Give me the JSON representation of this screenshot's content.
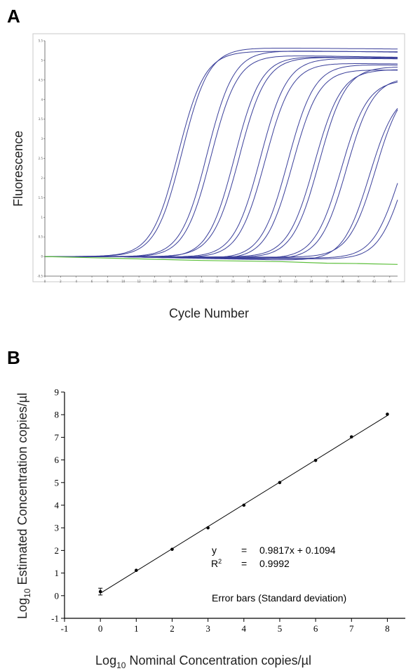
{
  "panels": {
    "a_label": "A",
    "b_label": "B"
  },
  "chart_data": [
    {
      "type": "line",
      "panel": "A",
      "xlabel": "Cycle Number",
      "ylabel": "Fluorescence",
      "xlim": [
        0,
        45
      ],
      "ylim": [
        -0.5,
        5.5
      ],
      "x_ticks": [
        "0",
        "2",
        "4",
        "6",
        "8",
        "10",
        "12",
        "14",
        "16",
        "18",
        "20",
        "22",
        "24",
        "26",
        "28",
        "30",
        "32",
        "34",
        "36",
        "38",
        "40",
        "42",
        "44"
      ],
      "y_ticks": [
        "-0.5",
        "0",
        "0.5",
        "1",
        "1.5",
        "2",
        "2.5",
        "3",
        "3.5",
        "4",
        "4.5",
        "5",
        "5.5"
      ],
      "grid": false,
      "series_color": "#3a3f9a",
      "negative_color": "#5cbf3a",
      "amplification_curves": [
        {
          "ct": 12.8,
          "plateau": 5.25
        },
        {
          "ct": 13.3,
          "plateau": 5.35
        },
        {
          "ct": 16.5,
          "plateau": 5.3
        },
        {
          "ct": 17.0,
          "plateau": 5.2
        },
        {
          "ct": 20.0,
          "plateau": 5.2
        },
        {
          "ct": 20.6,
          "plateau": 5.1
        },
        {
          "ct": 23.3,
          "plateau": 5.1
        },
        {
          "ct": 23.9,
          "plateau": 5.0
        },
        {
          "ct": 26.8,
          "plateau": 5.0
        },
        {
          "ct": 27.4,
          "plateau": 4.9
        },
        {
          "ct": 30.2,
          "plateau": 4.8
        },
        {
          "ct": 30.8,
          "plateau": 4.9
        },
        {
          "ct": 33.6,
          "plateau": 4.6
        },
        {
          "ct": 34.3,
          "plateau": 4.7
        },
        {
          "ct": 37.2,
          "plateau": 4.4
        },
        {
          "ct": 38.0,
          "plateau": 4.5
        },
        {
          "ct": 41.0,
          "plateau": 4.1
        },
        {
          "ct": 41.8,
          "plateau": 4.3
        }
      ],
      "negative_control": [
        [
          0,
          0
        ],
        [
          10,
          -0.05
        ],
        [
          20,
          -0.1
        ],
        [
          30,
          -0.13
        ],
        [
          36,
          -0.17
        ],
        [
          40,
          -0.18
        ],
        [
          45,
          -0.2
        ]
      ]
    },
    {
      "type": "scatter",
      "panel": "B",
      "xlabel": "Log10 Nominal Concentration copies/µl",
      "xlabel_main": "Log",
      "xlabel_sub": "10",
      "xlabel_rest": " Nominal Concentration copies/µl",
      "ylabel": "Log10 Estimated Concentration copies/µl",
      "ylabel_main": "Log",
      "ylabel_sub": "10",
      "ylabel_rest": " Estimated Concentration copies/µl",
      "xlim": [
        -1,
        8.5
      ],
      "ylim": [
        -1,
        9
      ],
      "x_ticks": [
        "-1",
        "0",
        "1",
        "2",
        "3",
        "4",
        "5",
        "6",
        "7",
        "8"
      ],
      "y_ticks": [
        "-1",
        "0",
        "1",
        "2",
        "3",
        "4",
        "5",
        "6",
        "7",
        "8",
        "9"
      ],
      "points": [
        {
          "x": 0,
          "y": 0.18,
          "sd": 0.15
        },
        {
          "x": 1,
          "y": 1.12,
          "sd": 0
        },
        {
          "x": 2,
          "y": 2.05,
          "sd": 0
        },
        {
          "x": 3,
          "y": 3.0,
          "sd": 0
        },
        {
          "x": 4,
          "y": 4.0,
          "sd": 0
        },
        {
          "x": 5,
          "y": 5.0,
          "sd": 0
        },
        {
          "x": 6,
          "y": 5.98,
          "sd": 0
        },
        {
          "x": 7,
          "y": 7.02,
          "sd": 0
        },
        {
          "x": 8,
          "y": 8.02,
          "sd": 0
        }
      ],
      "fit": {
        "slope": 0.9817,
        "intercept": 0.1094
      },
      "annotations": {
        "eq_sym": "y",
        "eq_eq": "=",
        "eq_val": "0.9817x + 0.1094",
        "r2_sym": "R",
        "r2_sup": "2",
        "r2_eq": "=",
        "r2_val": "0.9992",
        "error_bars": "Error bars (Standard deviation)"
      }
    }
  ]
}
